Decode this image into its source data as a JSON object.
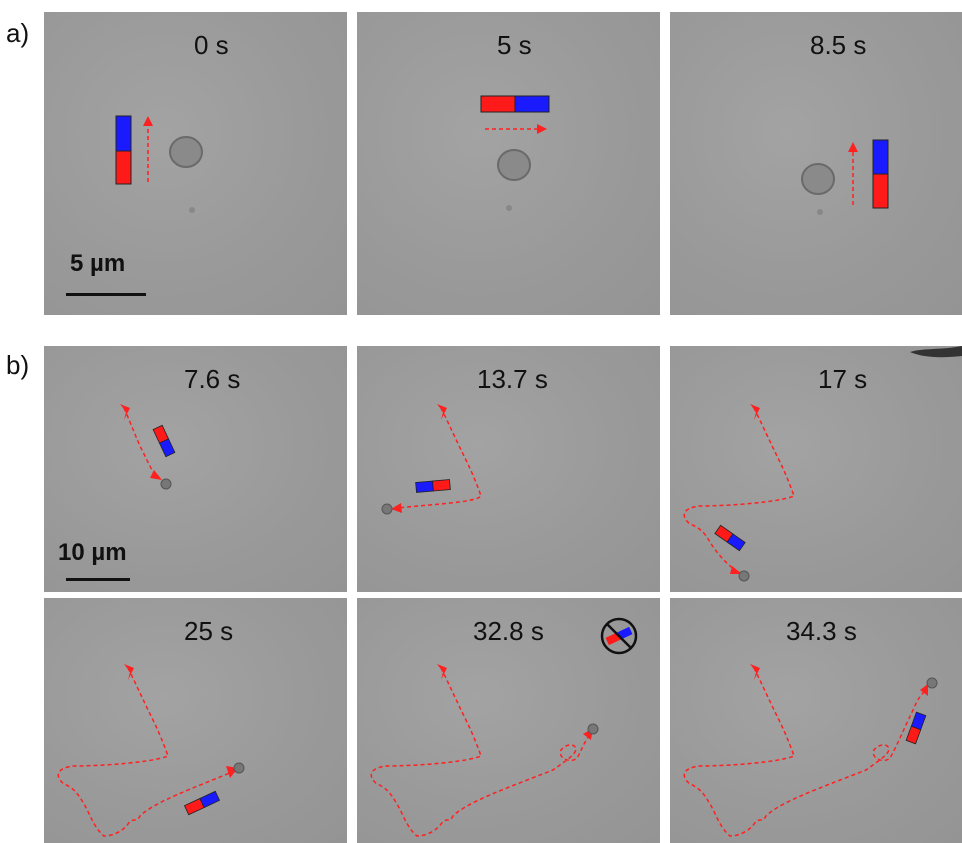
{
  "figure": {
    "row_a": {
      "label": "a)",
      "scale_label": "5 µm",
      "frames": [
        {
          "time": "0 s"
        },
        {
          "time": "5 s"
        },
        {
          "time": "8.5 s"
        }
      ]
    },
    "row_b": {
      "label": "b)",
      "scale_label": "10 µm",
      "frames": [
        {
          "time": "7.6 s"
        },
        {
          "time": "13.7 s"
        },
        {
          "time": "17 s"
        },
        {
          "time": "25 s"
        },
        {
          "time": "32.8 s"
        },
        {
          "time": "34.3 s"
        }
      ]
    },
    "colors": {
      "magnet_north": "#1a1aff",
      "magnet_south": "#ff1a1a",
      "trajectory": "#ff2020",
      "background": "#9a9a9a"
    },
    "icons": [
      "magnet-icon",
      "trajectory-arrow-icon",
      "no-field-icon"
    ]
  }
}
